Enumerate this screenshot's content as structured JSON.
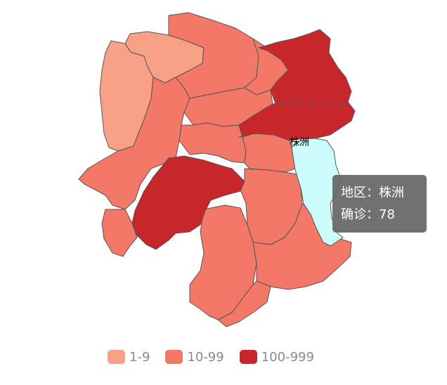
{
  "map": {
    "colors": {
      "low": "#f8a186",
      "mid": "#f47867",
      "high": "#c7272a",
      "hover": "#cdfcfd",
      "border": "#555555"
    },
    "hover_label": "株洲"
  },
  "tooltip": {
    "region_label": "地区：株洲",
    "count_label": "确诊：78"
  },
  "legend": {
    "items": [
      {
        "label": "1-9",
        "color": "#f8a186"
      },
      {
        "label": "10-99",
        "color": "#f47867"
      },
      {
        "label": "100-999",
        "color": "#c7272a"
      }
    ]
  }
}
